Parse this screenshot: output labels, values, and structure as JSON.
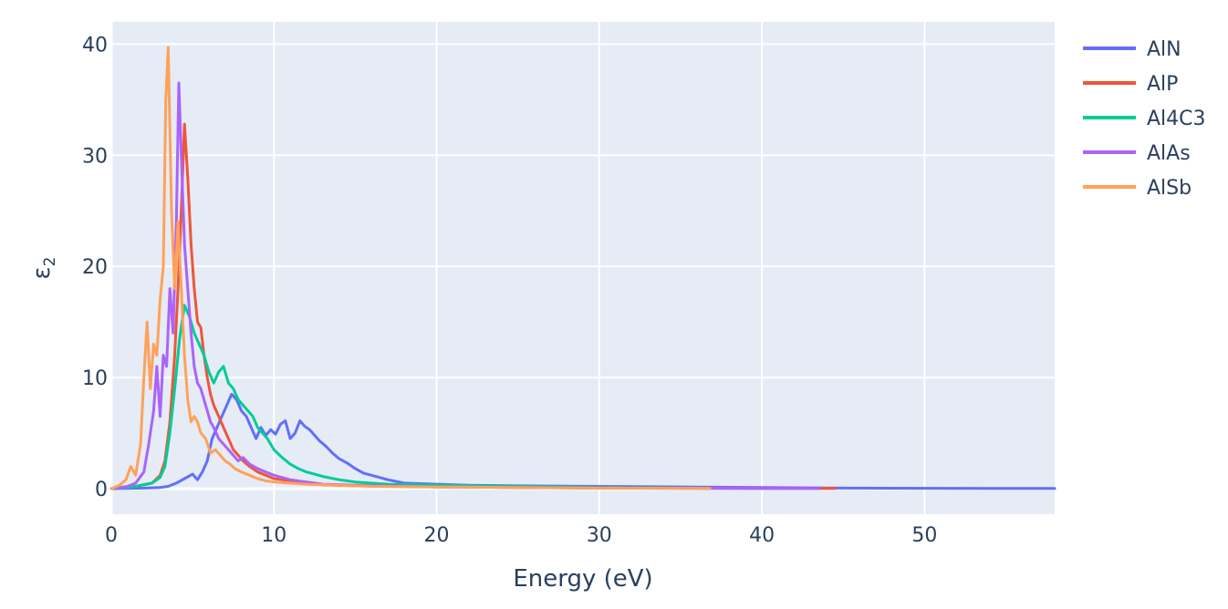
{
  "chart_data": {
    "type": "line",
    "title": "",
    "xlabel": "Energy (eV)",
    "ylabel": "ε",
    "ylabel_subscript": "2",
    "xlim": [
      0,
      58
    ],
    "ylim": [
      -2.3,
      42
    ],
    "x_ticks": [
      0,
      10,
      20,
      30,
      40,
      50
    ],
    "y_ticks": [
      0,
      10,
      20,
      30,
      40
    ],
    "x_tick_labels": [
      "0",
      "10",
      "20",
      "30",
      "40",
      "50"
    ],
    "y_tick_labels": [
      "0",
      "10",
      "20",
      "30",
      "40"
    ],
    "grid": true,
    "legend_position": "top-right",
    "colors": {
      "plot_bg": "#e5ecf6",
      "grid": "#ffffff",
      "text": "#2a3f5f"
    },
    "series": [
      {
        "name": "AlN",
        "color": "#636efa",
        "x": [
          0,
          2,
          3,
          3.5,
          4,
          4.5,
          5,
          5.3,
          5.6,
          5.9,
          6.2,
          6.5,
          6.8,
          7.1,
          7.4,
          7.7,
          8.0,
          8.3,
          8.6,
          8.9,
          9.2,
          9.5,
          9.8,
          10.1,
          10.4,
          10.7,
          11.0,
          11.3,
          11.6,
          11.9,
          12.2,
          12.5,
          12.8,
          13.2,
          13.6,
          14.0,
          14.5,
          15.0,
          15.5,
          16,
          17,
          18,
          19,
          20,
          22,
          25,
          30,
          35,
          40,
          45,
          50,
          55,
          58
        ],
        "y": [
          0,
          0.05,
          0.1,
          0.2,
          0.5,
          0.9,
          1.3,
          0.8,
          1.5,
          2.5,
          4.5,
          5.5,
          6.5,
          7.5,
          8.5,
          8.0,
          7.0,
          6.5,
          5.5,
          4.5,
          5.5,
          4.8,
          5.3,
          4.9,
          5.8,
          6.1,
          4.5,
          5.0,
          6.1,
          5.6,
          5.3,
          4.8,
          4.3,
          3.8,
          3.2,
          2.7,
          2.3,
          1.8,
          1.4,
          1.2,
          0.8,
          0.5,
          0.45,
          0.4,
          0.3,
          0.25,
          0.2,
          0.15,
          0.1,
          0.05,
          0.03,
          0.02,
          0.02
        ]
      },
      {
        "name": "AlP",
        "color": "#ef553b",
        "x": [
          0,
          1.5,
          2.5,
          3.0,
          3.3,
          3.6,
          3.9,
          4.1,
          4.3,
          4.5,
          4.7,
          4.9,
          5.1,
          5.3,
          5.5,
          5.7,
          5.9,
          6.1,
          6.3,
          6.6,
          6.9,
          7.2,
          7.5,
          7.8,
          8.1,
          8.5,
          9.0,
          9.5,
          10,
          11,
          12,
          13,
          15,
          17,
          20,
          25,
          30,
          35,
          40,
          44.5
        ],
        "y": [
          0,
          0.2,
          0.5,
          1.2,
          2.5,
          6,
          12,
          18,
          25,
          32.8,
          28,
          22,
          18,
          15,
          14.5,
          12,
          10,
          8.5,
          7.5,
          6.5,
          5.5,
          4.5,
          3.5,
          3.0,
          2.5,
          2.0,
          1.5,
          1.2,
          0.9,
          0.7,
          0.5,
          0.35,
          0.25,
          0.2,
          0.15,
          0.1,
          0.05,
          0.03,
          0.02,
          0.01
        ]
      },
      {
        "name": "Al4C3",
        "color": "#00cc96",
        "x": [
          0,
          1.5,
          2.5,
          3.0,
          3.3,
          3.6,
          3.9,
          4.2,
          4.5,
          4.8,
          5.1,
          5.4,
          5.7,
          6.0,
          6.3,
          6.6,
          6.9,
          7.2,
          7.5,
          7.8,
          8.1,
          8.4,
          8.7,
          9.0,
          9.3,
          9.6,
          10,
          10.5,
          11,
          11.5,
          12,
          12.5,
          13,
          14,
          15,
          17,
          20,
          25,
          30,
          35,
          36.8
        ],
        "y": [
          0,
          0.2,
          0.5,
          1,
          2,
          5,
          9,
          13.5,
          16.5,
          15.5,
          14,
          13,
          12,
          10.5,
          9.5,
          10.5,
          11,
          9.5,
          9,
          8,
          7.5,
          7,
          6.5,
          5.5,
          5,
          4.5,
          3.5,
          2.8,
          2.2,
          1.8,
          1.5,
          1.3,
          1.1,
          0.8,
          0.6,
          0.4,
          0.3,
          0.2,
          0.1,
          0.05,
          0.02
        ]
      },
      {
        "name": "AlAs",
        "color": "#ab63fa",
        "x": [
          0,
          1.0,
          1.5,
          2.0,
          2.3,
          2.6,
          2.8,
          3.0,
          3.2,
          3.4,
          3.6,
          3.8,
          4.0,
          4.15,
          4.3,
          4.5,
          4.7,
          4.9,
          5.1,
          5.3,
          5.5,
          5.7,
          5.9,
          6.1,
          6.3,
          6.6,
          6.9,
          7.2,
          7.5,
          7.8,
          8.1,
          8.5,
          9.0,
          9.5,
          10,
          11,
          12,
          13,
          15,
          18,
          20,
          25,
          30,
          35,
          40,
          43.5
        ],
        "y": [
          0,
          0.2,
          0.5,
          1.5,
          4,
          7,
          11,
          6.5,
          12,
          11,
          18,
          14,
          24,
          36.5,
          30,
          22,
          18,
          14,
          11,
          9.5,
          9,
          8,
          7,
          6,
          5.5,
          4.5,
          4,
          3.5,
          3,
          2.5,
          2.8,
          2.2,
          1.8,
          1.5,
          1.2,
          0.8,
          0.6,
          0.4,
          0.3,
          0.2,
          0.15,
          0.1,
          0.06,
          0.04,
          0.02,
          0.01
        ]
      },
      {
        "name": "AlSb",
        "color": "#ffa15a",
        "x": [
          0,
          0.5,
          0.9,
          1.2,
          1.5,
          1.8,
          2.0,
          2.2,
          2.4,
          2.6,
          2.8,
          3.0,
          3.2,
          3.35,
          3.5,
          3.7,
          3.9,
          4.1,
          4.3,
          4.5,
          4.7,
          4.9,
          5.1,
          5.3,
          5.5,
          5.8,
          6.1,
          6.4,
          6.7,
          7.0,
          7.3,
          7.6,
          8.0,
          8.5,
          9.0,
          9.5,
          10,
          11,
          12,
          14,
          16,
          20,
          25,
          30,
          36.8
        ],
        "y": [
          0,
          0.3,
          0.8,
          2,
          1.2,
          4,
          10,
          15,
          9,
          13,
          12,
          17,
          20,
          35,
          39.7,
          25,
          18,
          24,
          18,
          12,
          8,
          6,
          6.5,
          6,
          5,
          4.5,
          3.2,
          3.5,
          3,
          2.5,
          2.2,
          1.8,
          1.5,
          1.2,
          0.9,
          0.7,
          0.6,
          0.5,
          0.4,
          0.3,
          0.2,
          0.15,
          0.1,
          0.05,
          0.02
        ]
      }
    ]
  }
}
